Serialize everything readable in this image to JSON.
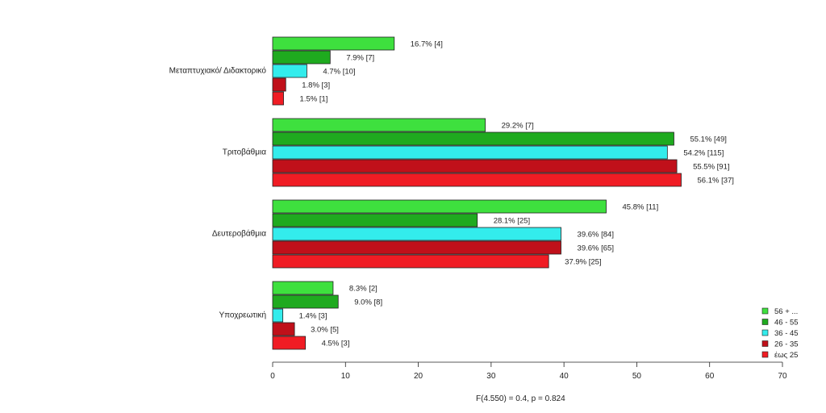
{
  "chart_data": {
    "type": "bar",
    "orientation": "horizontal",
    "categories": [
      "Μεταπτυχιακό/ Διδακτορικό",
      "Τριτοβάθμια",
      "Δευτεροβάθμια",
      "Υποχρεωτική"
    ],
    "series": [
      {
        "name": "56 + ...",
        "color": "#3ee03e",
        "values": [
          16.7,
          29.2,
          45.8,
          8.3
        ],
        "labels": [
          "16.7% [4]",
          "29.2% [7]",
          "45.8% [11]",
          "8.3% [2]"
        ]
      },
      {
        "name": "46 - 55",
        "color": "#1faa1f",
        "values": [
          7.9,
          55.1,
          28.1,
          9.0
        ],
        "labels": [
          "7.9% [7]",
          "55.1% [49]",
          "28.1% [25]",
          "9.0% [8]"
        ]
      },
      {
        "name": "36 - 45",
        "color": "#33ecec",
        "values": [
          4.7,
          54.2,
          39.6,
          1.4
        ],
        "labels": [
          "4.7% [10]",
          "54.2% [115]",
          "39.6% [84]",
          "1.4% [3]"
        ]
      },
      {
        "name": "26 - 35",
        "color": "#c0101a",
        "values": [
          1.8,
          55.5,
          39.6,
          3.0
        ],
        "labels": [
          "1.8% [3]",
          "55.5% [91]",
          "39.6% [65]",
          "3.0% [5]"
        ]
      },
      {
        "name": "έως 25",
        "color": "#f01c24",
        "values": [
          1.5,
          56.1,
          37.9,
          4.5
        ],
        "labels": [
          "1.5% [1]",
          "56.1% [37]",
          "37.9% [25]",
          "4.5% [3]"
        ]
      }
    ],
    "xlim": [
      0,
      70
    ],
    "xticks": [
      "0",
      "10",
      "20",
      "30",
      "40",
      "50",
      "60",
      "70"
    ],
    "xtick_values": [
      0,
      10,
      20,
      30,
      40,
      50,
      60,
      70
    ],
    "legend_order": [
      "56 + ...",
      "46 - 55",
      "36 - 45",
      "26 - 35",
      "έως 25"
    ],
    "legend_position": "bottom-right",
    "grid": false,
    "annotation": "F(4.550) = 0.4,    p = 0.824"
  }
}
